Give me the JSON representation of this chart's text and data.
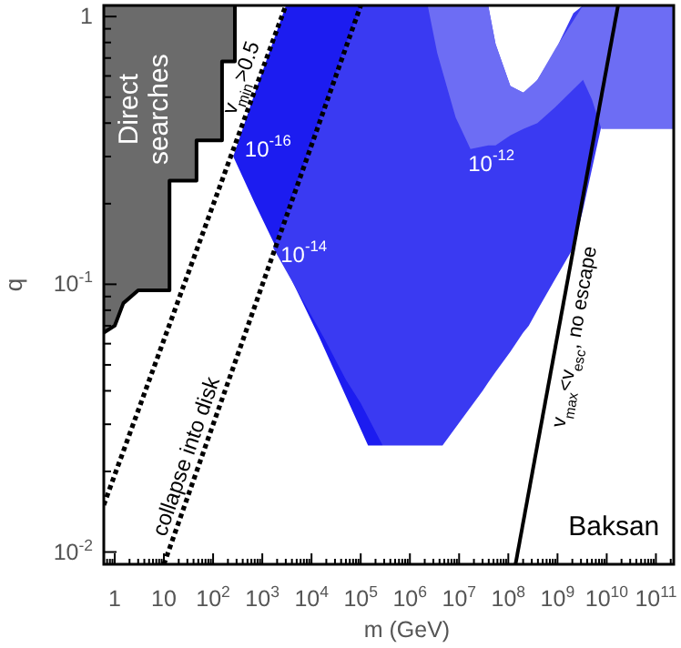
{
  "chart_data": {
    "type": "area",
    "xlabel": "m (GeV)",
    "ylabel": "q",
    "xlim": [
      0.6,
      230000000000.0
    ],
    "ylim": [
      0.009,
      1.1
    ],
    "log": "xy",
    "grid": false,
    "xticks": [
      {
        "value": 0.6,
        "label": null
      },
      {
        "value": 0.7,
        "label": null
      },
      {
        "value": 0.8,
        "label": null
      },
      {
        "value": 0.9,
        "label": null
      },
      1,
      {
        "value": 2,
        "label": null
      },
      {
        "value": 3,
        "label": null
      },
      {
        "value": 4,
        "label": null
      },
      {
        "value": 5,
        "label": null
      },
      {
        "value": 6,
        "label": null
      },
      {
        "value": 7,
        "label": null
      },
      {
        "value": 8,
        "label": null
      },
      {
        "value": 9,
        "label": null
      },
      10,
      {
        "value": 20,
        "label": null
      },
      {
        "value": 30,
        "label": null
      },
      {
        "value": 40,
        "label": null
      },
      {
        "value": 50,
        "label": null
      },
      {
        "value": 60,
        "label": null
      },
      {
        "value": 70,
        "label": null
      },
      {
        "value": 80,
        "label": null
      },
      {
        "value": 90,
        "label": null
      },
      {
        "value": 100,
        "label": "10$^{2}$"
      },
      {
        "value": 200,
        "label": null
      },
      {
        "value": 300,
        "label": null
      },
      {
        "value": 400,
        "label": null
      },
      {
        "value": 500,
        "label": null
      },
      {
        "value": 600,
        "label": null
      },
      {
        "value": 700,
        "label": null
      },
      {
        "value": 800,
        "label": null
      },
      {
        "value": 900,
        "label": null
      },
      {
        "value": 1000,
        "label": "10$^{3}$"
      },
      {
        "value": 2000,
        "label": null
      },
      {
        "value": 3000,
        "label": null
      },
      {
        "value": 4000,
        "label": null
      },
      {
        "value": 5000,
        "label": null
      },
      {
        "value": 6000,
        "label": null
      },
      {
        "value": 7000,
        "label": null
      },
      {
        "value": 8000,
        "label": null
      },
      {
        "value": 9000,
        "label": null
      },
      {
        "value": 10000,
        "label": "10$^{4}$"
      },
      {
        "value": 20000,
        "label": null
      },
      {
        "value": 30000,
        "label": null
      },
      {
        "value": 40000,
        "label": null
      },
      {
        "value": 50000,
        "label": null
      },
      {
        "value": 60000,
        "label": null
      },
      {
        "value": 70000,
        "label": null
      },
      {
        "value": 80000,
        "label": null
      },
      {
        "value": 90000,
        "label": null
      },
      {
        "value": 100000.0,
        "label": "10$^{5}$"
      },
      {
        "value": 200000.0,
        "label": null
      },
      {
        "value": 300000.0,
        "label": null
      },
      {
        "value": 400000.0,
        "label": null
      },
      {
        "value": 500000.0,
        "label": null
      },
      {
        "value": 600000.0,
        "label": null
      },
      {
        "value": 700000.0,
        "label": null
      },
      {
        "value": 800000.0,
        "label": null
      },
      {
        "value": 900000.0,
        "label": null
      },
      {
        "value": 1000000.0,
        "label": "10$^{6}$"
      },
      {
        "value": 2000000.0,
        "label": null
      },
      {
        "value": 3000000.0,
        "label": null
      },
      {
        "value": 4000000.0,
        "label": null
      },
      {
        "value": 5000000.0,
        "label": null
      },
      {
        "value": 6000000.0,
        "label": null
      },
      {
        "value": 7000000.0,
        "label": null
      },
      {
        "value": 8000000.0,
        "label": null
      },
      {
        "value": 9000000.0,
        "label": null
      },
      {
        "value": 10000000.0,
        "label": "10$^{7}$"
      },
      {
        "value": 20000000.0,
        "label": null
      },
      {
        "value": 30000000.0,
        "label": null
      },
      {
        "value": 40000000.0,
        "label": null
      },
      {
        "value": 50000000.0,
        "label": null
      },
      {
        "value": 60000000.0,
        "label": null
      },
      {
        "value": 70000000.0,
        "label": null
      },
      {
        "value": 80000000.0,
        "label": null
      },
      {
        "value": 90000000.0,
        "label": null
      },
      {
        "value": 100000000.0,
        "label": "10$^{8}$"
      },
      {
        "value": 200000000.0,
        "label": null
      },
      {
        "value": 300000000.0,
        "label": null
      },
      {
        "value": 400000000.0,
        "label": null
      },
      {
        "value": 500000000.0,
        "label": null
      },
      {
        "value": 600000000.0,
        "label": null
      },
      {
        "value": 700000000.0,
        "label": null
      },
      {
        "value": 800000000.0,
        "label": null
      },
      {
        "value": 900000000.0,
        "label": null
      },
      {
        "value": 1000000000.0,
        "label": "10$^{9}$"
      },
      {
        "value": 2000000000.0,
        "label": null
      },
      {
        "value": 3000000000.0,
        "label": null
      },
      {
        "value": 4000000000.0,
        "label": null
      },
      {
        "value": 5000000000.0,
        "label": null
      },
      {
        "value": 6000000000.0,
        "label": null
      },
      {
        "value": 7000000000.0,
        "label": null
      },
      {
        "value": 8000000000.0,
        "label": null
      },
      {
        "value": 9000000000.0,
        "label": null
      },
      {
        "value": 10000000000.0,
        "label": "10$^{10}$"
      },
      {
        "value": 20000000000.0,
        "label": null
      },
      {
        "value": 30000000000.0,
        "label": null
      },
      {
        "value": 40000000000.0,
        "label": null
      },
      {
        "value": 50000000000.0,
        "label": null
      },
      {
        "value": 60000000000.0,
        "label": null
      },
      {
        "value": 70000000000.0,
        "label": null
      },
      {
        "value": 80000000000.0,
        "label": null
      },
      {
        "value": 90000000000.0,
        "label": null
      },
      {
        "value": 100000000000.0,
        "label": "10$^{11}$"
      },
      {
        "value": 200000000000.0,
        "label": null
      }
    ],
    "yticks": [
      {
        "value": 0.01,
        "label": "10$^{-2}$"
      },
      {
        "value": 0.02,
        "label": null
      },
      {
        "value": 0.03,
        "label": null
      },
      {
        "value": 0.04,
        "label": null
      },
      {
        "value": 0.05,
        "label": null
      },
      {
        "value": 0.06,
        "label": null
      },
      {
        "value": 0.07,
        "label": null
      },
      {
        "value": 0.08,
        "label": null
      },
      {
        "value": 0.09,
        "label": null
      },
      {
        "value": 0.1,
        "label": "10$^{-1}$"
      },
      {
        "value": 0.2,
        "label": null
      },
      {
        "value": 0.3,
        "label": null
      },
      {
        "value": 0.4,
        "label": null
      },
      {
        "value": 0.5,
        "label": null
      },
      {
        "value": 0.6,
        "label": null
      },
      {
        "value": 0.7,
        "label": null
      },
      {
        "value": 0.8,
        "label": null
      },
      {
        "value": 0.9,
        "label": null
      },
      1
    ],
    "series": [
      {
        "color": "#6b6b6b",
        "x": [
          0.6,
          1,
          1.5,
          3,
          13,
          13,
          46,
          46,
          152,
          152,
          277,
          277
        ],
        "values": [
          null,
          null,
          null,
          null,
          null,
          null,
          null,
          null,
          null,
          null,
          null,
          null
        ],
        "upper": [
          1.1,
          1.1,
          1.1,
          1.1,
          1.1,
          1.1,
          1.1,
          1.1,
          1.1,
          1.1,
          1.1,
          1.1
        ],
        "lower": [
          0.066,
          0.07,
          0.085,
          0.095,
          0.095,
          0.244,
          0.244,
          0.345,
          0.345,
          0.68,
          0.68,
          1.1
        ]
      },
      {
        "type": "line",
        "color": "#000000",
        "line_style": "solid",
        "x": [
          0.6,
          1,
          1.5,
          3,
          13,
          13,
          46,
          46,
          152,
          152,
          277,
          277
        ],
        "values": [
          0.066,
          0.07,
          0.085,
          0.095,
          0.095,
          0.244,
          0.244,
          0.345,
          0.345,
          0.68,
          0.68,
          1.1
        ]
      },
      {
        "color": "#1c1cf0",
        "x": [
          257,
          708,
          3020,
          14100,
          141000.0,
          280000.0
        ],
        "values": [
          null,
          null,
          null,
          null,
          null,
          null
        ],
        "upper": [
          0.3,
          0.52,
          1.1,
          1.1,
          1.1,
          1.1
        ],
        "lower": [
          0.3,
          0.2,
          0.115,
          0.064,
          0.025,
          0.025
        ]
      },
      {
        "color": "#3a3af2",
        "x": [
          1660,
          6000,
          18000,
          50000,
          100000.0,
          280000.0,
          4600000.0,
          30000000.0,
          39000000.0,
          55000000.0,
          110000000.0,
          200000000.0,
          260000000.0,
          390000000.0,
          910000000.0,
          2100000000.0,
          3300000000.0,
          7800000000.0,
          14000000000.0
        ],
        "values": [
          null,
          null,
          null,
          null,
          null,
          null,
          null,
          null,
          null,
          null,
          null,
          null,
          null,
          null,
          null,
          null,
          null,
          null,
          null
        ],
        "upper": [
          0.137,
          0.26,
          0.46,
          0.79,
          1.1,
          1.1,
          1.1,
          1.1,
          1.1,
          0.79,
          0.55,
          0.52,
          0.53,
          0.58,
          0.75,
          1.03,
          1.1,
          1.1,
          1.1
        ],
        "lower": [
          0.137,
          0.09,
          0.063,
          0.044,
          0.036,
          0.025,
          0.025,
          0.04,
          0.043,
          0.047,
          0.056,
          0.066,
          0.07,
          0.08,
          0.105,
          0.137,
          0.19,
          0.39,
          1.1
        ]
      },
      {
        "color": "#6d6df4",
        "x": [
          2300000.0,
          3600000.0,
          8500000.0,
          17000000.0,
          39000000.0,
          55000000.0,
          110000000.0,
          200000000.0,
          390000000.0,
          910000000.0,
          3300000000.0,
          5000000000.0,
          7800000000.0,
          230000000000.0
        ],
        "values": [
          null,
          null,
          null,
          null,
          null,
          null,
          null,
          null,
          null,
          null,
          null,
          null,
          null,
          null
        ],
        "upper": [
          1.1,
          1.1,
          1.1,
          1.1,
          1.1,
          0.79,
          0.55,
          0.52,
          0.58,
          0.76,
          1.1,
          1.1,
          1.1,
          1.1
        ],
        "lower": [
          1.1,
          0.73,
          0.42,
          0.32,
          0.33,
          0.33,
          0.36,
          0.38,
          0.4,
          0.46,
          0.58,
          0.49,
          0.38,
          0.38
        ]
      },
      {
        "type": "line",
        "color": "#000000",
        "line_style": "dotted",
        "x": [
          0.6,
          3000
        ],
        "values": [
          0.015,
          1.1
        ]
      },
      {
        "type": "line",
        "color": "#000000",
        "line_style": "dotted",
        "x": [
          10,
          100000.0
        ],
        "values": [
          0.009,
          1.1
        ]
      },
      {
        "type": "line",
        "color": "#000000",
        "line_style": "solid",
        "x": [
          140000000.0,
          17000000000.0
        ],
        "values": [
          0.009,
          1.1
        ]
      }
    ],
    "annotations": [
      "Direct searches",
      "v$_{min}$>0.5",
      "10$^{-16}$",
      "10$^{-14}$",
      "10$^{-12}$",
      "collapse into disk",
      "v$_{max}$<v$_{esc}$, no escape",
      "Baksan"
    ]
  }
}
